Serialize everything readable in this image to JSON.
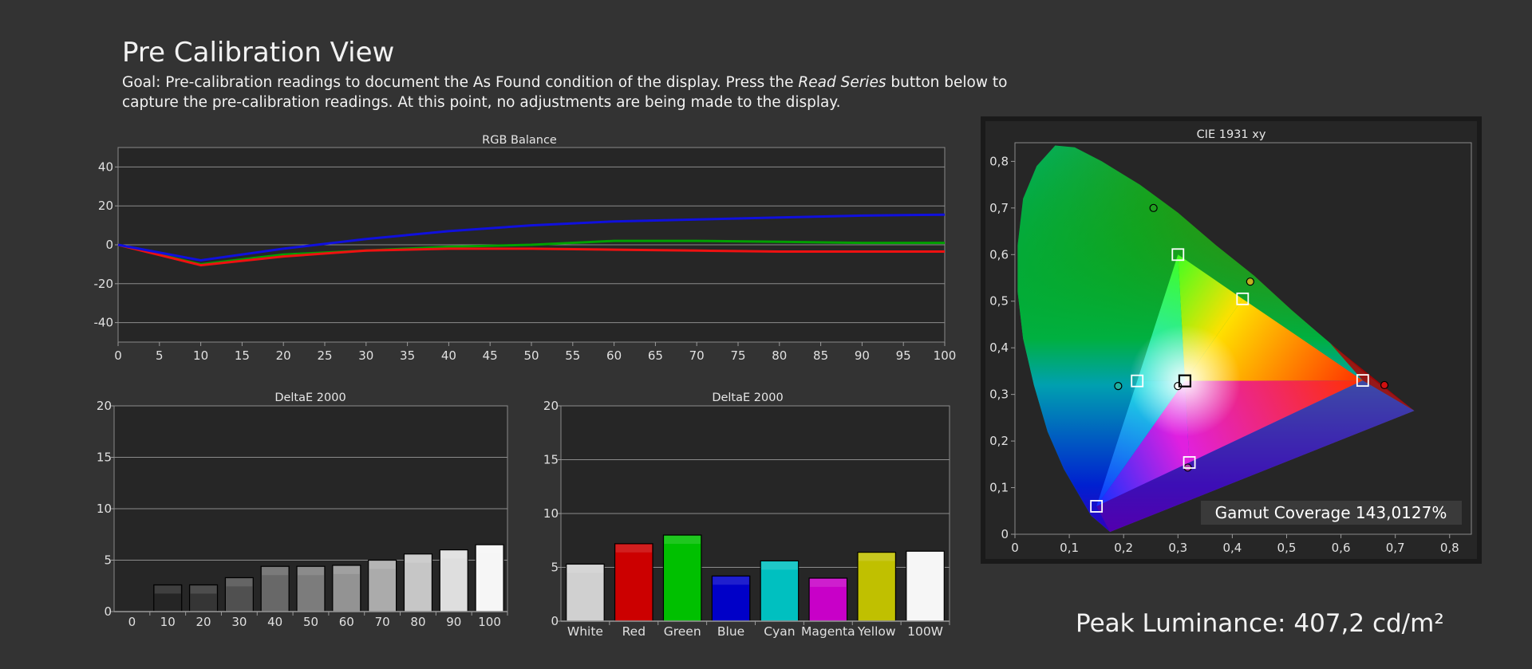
{
  "page": {
    "title": "Pre Calibration View",
    "goal_prefix": "Goal: Pre-calibration readings to document the As Found condition of the display. Press the ",
    "goal_italic": "Read Series",
    "goal_suffix": " button below to capture the pre-calibration readings. At this point, no adjustments are being made to the display.",
    "peak_luminance": "Peak Luminance: 407,2 cd/m²"
  },
  "chart_data": [
    {
      "id": "rgb",
      "type": "line",
      "title": "RGB Balance",
      "x": [
        0,
        10,
        20,
        30,
        40,
        50,
        60,
        70,
        80,
        90,
        100
      ],
      "x_ticks": [
        0,
        5,
        10,
        15,
        20,
        25,
        30,
        35,
        40,
        45,
        50,
        55,
        60,
        65,
        70,
        75,
        80,
        85,
        90,
        95,
        100
      ],
      "y_ticks": [
        40,
        20,
        0,
        -20,
        -40
      ],
      "xlim": [
        0,
        100
      ],
      "ylim": [
        -50,
        50
      ],
      "grid": true,
      "series": [
        {
          "color": "#00a000",
          "values": [
            0,
            -10,
            -5,
            -3,
            -1,
            0,
            2,
            2,
            1.5,
            1,
            1
          ]
        },
        {
          "color": "#ee1111",
          "values": [
            0,
            -10.5,
            -6,
            -3,
            -2,
            -2,
            -2.5,
            -3,
            -3.5,
            -3.5,
            -3.5
          ]
        },
        {
          "color": "#1010dd",
          "values": [
            0,
            -8,
            -2,
            3,
            7,
            10,
            12,
            13,
            14,
            15,
            15.5
          ]
        }
      ]
    },
    {
      "id": "de_gray",
      "type": "bar",
      "title": "DeltaE 2000",
      "categories": [
        "0",
        "10",
        "20",
        "30",
        "40",
        "50",
        "60",
        "70",
        "80",
        "90",
        "100"
      ],
      "values": [
        0,
        2.6,
        2.6,
        3.3,
        4.4,
        4.4,
        4.5,
        5.0,
        5.6,
        6.0,
        6.5
      ],
      "bar_colors": [
        "#202020",
        "#252525",
        "#353535",
        "#505050",
        "#686868",
        "#7c7c7c",
        "#939393",
        "#ababab",
        "#c6c6c6",
        "#dedede",
        "#f6f6f6"
      ],
      "y_ticks": [
        20,
        15,
        10,
        5,
        0
      ],
      "ylim": [
        0,
        20
      ]
    },
    {
      "id": "de_color",
      "type": "bar",
      "title": "DeltaE 2000",
      "categories": [
        "White",
        "Red",
        "Green",
        "Blue",
        "Cyan",
        "Magenta",
        "Yellow",
        "100W"
      ],
      "values": [
        5.3,
        7.2,
        8.0,
        4.2,
        5.6,
        4.0,
        6.4,
        6.5
      ],
      "bar_colors": [
        "#d0d0d0",
        "#cc0000",
        "#00c000",
        "#0000c8",
        "#00c0c0",
        "#c800c8",
        "#c0c000",
        "#f6f6f6"
      ],
      "y_ticks": [
        20,
        15,
        10,
        5,
        0
      ],
      "ylim": [
        0,
        20
      ]
    },
    {
      "id": "cie",
      "type": "scatter",
      "title": "CIE 1931 xy",
      "x_ticks": [
        "0",
        "0,1",
        "0,2",
        "0,3",
        "0,4",
        "0,5",
        "0,6",
        "0,7",
        "0,8"
      ],
      "y_ticks": [
        "0",
        "0,1",
        "0,2",
        "0,3",
        "0,4",
        "0,5",
        "0,6",
        "0,7",
        "0,8"
      ],
      "xlim": [
        0,
        0.84
      ],
      "ylim": [
        0,
        0.84
      ],
      "targets": [
        [
          0.64,
          0.33
        ],
        [
          0.3,
          0.6
        ],
        [
          0.15,
          0.06
        ],
        [
          0.225,
          0.329
        ],
        [
          0.321,
          0.154
        ],
        [
          0.419,
          0.505
        ],
        [
          0.3127,
          0.329
        ]
      ],
      "measured": [
        [
          0.68,
          0.32
        ],
        [
          0.255,
          0.7
        ],
        [
          0.19,
          0.318
        ],
        [
          0.433,
          0.542
        ],
        [
          0.3,
          0.318
        ],
        [
          0.318,
          0.143
        ]
      ],
      "measured_colors": [
        "#d01010",
        "#20a020",
        "#20b0a0",
        "#c0b020",
        "#ffffff",
        "#b040b0"
      ],
      "gamut_coverage": "Gamut Coverage 143,0127%"
    }
  ]
}
